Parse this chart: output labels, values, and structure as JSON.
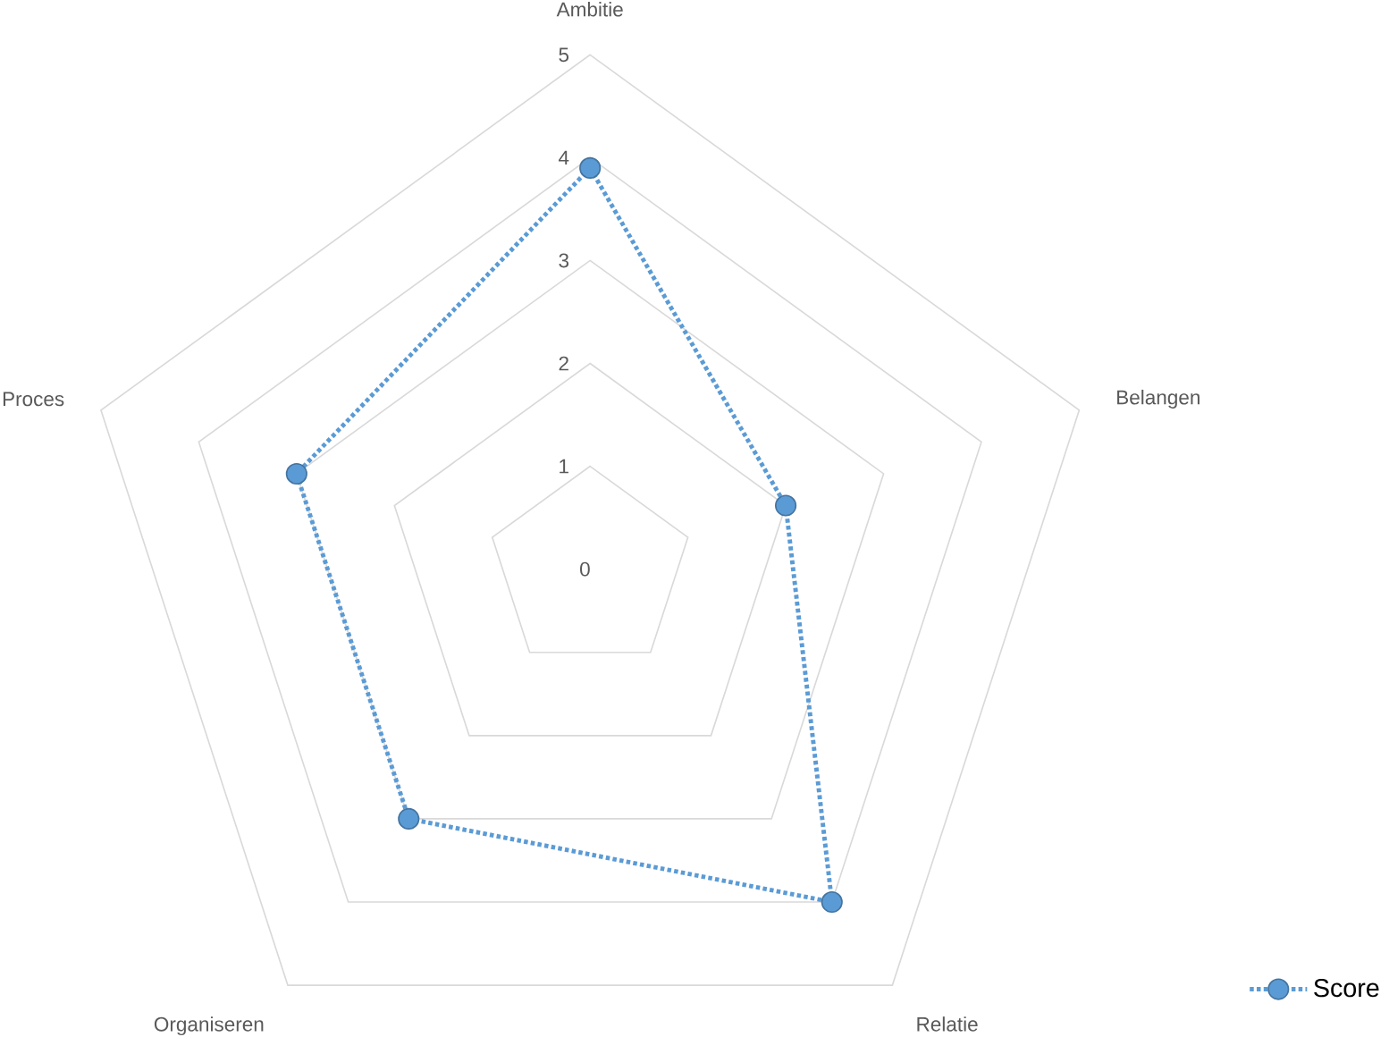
{
  "chart_data": {
    "type": "radar",
    "categories": [
      "Ambitie",
      "Belangen",
      "Relatie",
      "Organiseren",
      "Proces"
    ],
    "series": [
      {
        "name": "Score",
        "color": "#5b9bd5",
        "values": [
          3.9,
          2,
          4,
          3,
          3
        ]
      }
    ],
    "ylim": [
      0,
      5
    ],
    "yticks": [
      0,
      1,
      2,
      3,
      4,
      5
    ],
    "grid": true,
    "legend": "bottom right",
    "marker": "circle",
    "line_style": "dotted"
  }
}
